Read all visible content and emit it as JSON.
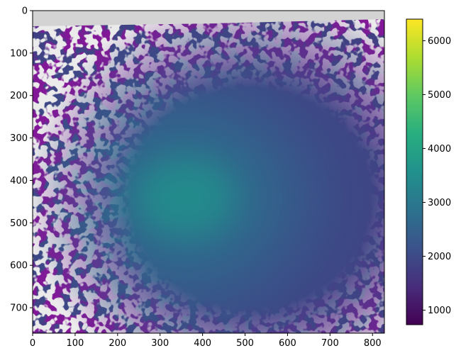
{
  "chart_data": {
    "type": "heatmap",
    "title": "",
    "xlabel": "",
    "ylabel": "",
    "xlim": [
      0,
      828
    ],
    "ylim": [
      760,
      0
    ],
    "x_ticks": [
      0,
      100,
      200,
      300,
      400,
      500,
      600,
      700,
      800
    ],
    "y_ticks": [
      0,
      100,
      200,
      300,
      400,
      500,
      600,
      700
    ],
    "colormap": "viridis",
    "nodata_color": "#d3d3d3",
    "colorbar": {
      "range": [
        730,
        6400
      ],
      "ticks": [
        1000,
        2000,
        3000,
        4000,
        5000,
        6000
      ]
    },
    "peak": {
      "x": 360,
      "y": 440,
      "value": 3900
    },
    "grid": false
  }
}
